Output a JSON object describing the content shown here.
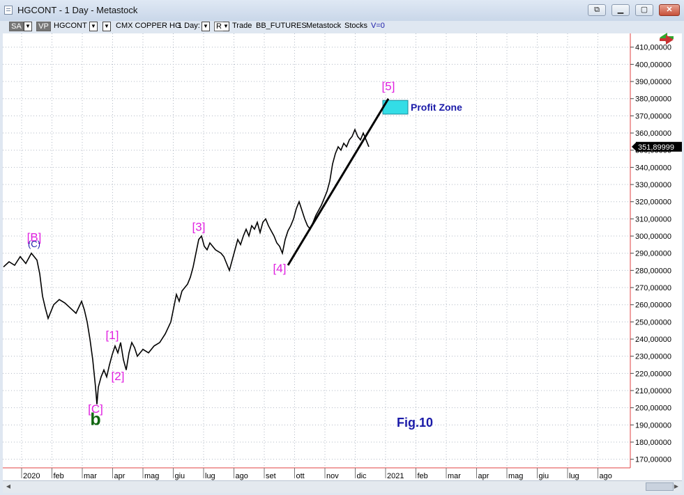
{
  "window": {
    "title": "HGCONT - 1 Day - Metastock"
  },
  "toolbar": {
    "sa": "SA",
    "vp": "VP",
    "symbol": "HGCONT",
    "security_name": "CMX COPPER HG",
    "period": "1 Day:",
    "r": "R",
    "trade": "Trade",
    "source": "BB_FUTURES",
    "provider": "Metastock",
    "stocks": "Stocks",
    "volume": "V=0"
  },
  "colors": {
    "wave_label": "#e020e0",
    "annotation_blue": "#1a1aa8",
    "wave_b_green": "#116611",
    "profit_zone": "#33dde6",
    "price_box": "#000000"
  },
  "chart_data": {
    "type": "line",
    "ylim": [
      165000,
      418000
    ],
    "y_ticks": [
      170000,
      180000,
      190000,
      200000,
      210000,
      220000,
      230000,
      240000,
      250000,
      260000,
      270000,
      280000,
      290000,
      300000,
      310000,
      320000,
      330000,
      340000,
      350000,
      360000,
      370000,
      380000,
      390000,
      400000,
      410000
    ],
    "y_tick_labels": [
      "170,00000",
      "180,00000",
      "190,00000",
      "200,00000",
      "210,00000",
      "220,00000",
      "230,00000",
      "240,00000",
      "250,00000",
      "260,00000",
      "270,00000",
      "280,00000",
      "290,00000",
      "300,00000",
      "310,00000",
      "320,00000",
      "330,00000",
      "340,00000",
      "350,00000",
      "360,00000",
      "370,00000",
      "380,00000",
      "390,00000",
      "400,00000",
      "410,00000"
    ],
    "x_months": [
      "2020",
      "feb",
      "mar",
      "apr",
      "mag",
      "giu",
      "lug",
      "ago",
      "set",
      "ott",
      "nov",
      "dic",
      "2021",
      "feb",
      "mar",
      "apr",
      "mag",
      "giu",
      "lug",
      "ago"
    ],
    "last_price": "351,89999",
    "series": [
      {
        "points": [
          [
            0,
            282000
          ],
          [
            2,
            285000
          ],
          [
            4,
            283000
          ],
          [
            6,
            288000
          ],
          [
            8,
            284000
          ],
          [
            10,
            290000
          ],
          [
            12,
            286000
          ],
          [
            13,
            278000
          ],
          [
            14,
            265000
          ],
          [
            15,
            258000
          ],
          [
            16,
            252000
          ],
          [
            17,
            256000
          ],
          [
            18,
            260000
          ],
          [
            20,
            263000
          ],
          [
            22,
            261000
          ],
          [
            24,
            258000
          ],
          [
            26,
            255000
          ],
          [
            28,
            262000
          ],
          [
            29,
            257000
          ],
          [
            30,
            250000
          ],
          [
            31,
            240000
          ],
          [
            32,
            228000
          ],
          [
            33,
            212000
          ],
          [
            33.5,
            202000
          ],
          [
            34,
            212000
          ],
          [
            35,
            218000
          ],
          [
            36,
            222000
          ],
          [
            37,
            218000
          ],
          [
            38,
            225000
          ],
          [
            39,
            231000
          ],
          [
            40,
            236000
          ],
          [
            41,
            232000
          ],
          [
            42,
            238000
          ],
          [
            43,
            228000
          ],
          [
            44,
            222000
          ],
          [
            45,
            232000
          ],
          [
            46,
            238000
          ],
          [
            47,
            235000
          ],
          [
            48,
            230000
          ],
          [
            50,
            234000
          ],
          [
            52,
            232000
          ],
          [
            54,
            236000
          ],
          [
            56,
            238000
          ],
          [
            58,
            243000
          ],
          [
            60,
            250000
          ],
          [
            61,
            258000
          ],
          [
            62,
            266000
          ],
          [
            63,
            262000
          ],
          [
            64,
            268000
          ],
          [
            66,
            272000
          ],
          [
            67,
            276000
          ],
          [
            68,
            282000
          ],
          [
            69,
            290000
          ],
          [
            70,
            298000
          ],
          [
            71,
            300000
          ],
          [
            72,
            294000
          ],
          [
            73,
            292000
          ],
          [
            74,
            296000
          ],
          [
            76,
            292000
          ],
          [
            78,
            290000
          ],
          [
            79,
            288000
          ],
          [
            80,
            284000
          ],
          [
            81,
            280000
          ],
          [
            82,
            286000
          ],
          [
            83,
            292000
          ],
          [
            84,
            298000
          ],
          [
            85,
            295000
          ],
          [
            86,
            300000
          ],
          [
            87,
            304000
          ],
          [
            88,
            300000
          ],
          [
            89,
            306000
          ],
          [
            90,
            304000
          ],
          [
            91,
            308000
          ],
          [
            92,
            302000
          ],
          [
            93,
            308000
          ],
          [
            94,
            310000
          ],
          [
            95,
            306000
          ],
          [
            96,
            303000
          ],
          [
            97,
            300000
          ],
          [
            98,
            296000
          ],
          [
            99,
            294000
          ],
          [
            100,
            290000
          ],
          [
            101,
            298000
          ],
          [
            102,
            303000
          ],
          [
            103,
            306000
          ],
          [
            104,
            310000
          ],
          [
            105,
            316000
          ],
          [
            106,
            320000
          ],
          [
            107,
            315000
          ],
          [
            108,
            310000
          ],
          [
            109,
            306000
          ],
          [
            110,
            304000
          ],
          [
            111,
            308000
          ],
          [
            112,
            312000
          ],
          [
            113,
            315000
          ],
          [
            114,
            318000
          ],
          [
            115,
            322000
          ],
          [
            116,
            326000
          ],
          [
            117,
            332000
          ],
          [
            118,
            342000
          ],
          [
            119,
            348000
          ],
          [
            120,
            352000
          ],
          [
            121,
            350000
          ],
          [
            122,
            354000
          ],
          [
            123,
            352000
          ],
          [
            124,
            356000
          ],
          [
            125,
            358000
          ],
          [
            126,
            362000
          ],
          [
            127,
            358000
          ],
          [
            128,
            356000
          ],
          [
            129,
            360000
          ],
          [
            130,
            356000
          ],
          [
            131,
            352000
          ]
        ]
      }
    ],
    "trendline": {
      "from": [
        102,
        283000
      ],
      "to": [
        138,
        380000
      ]
    },
    "annotations": [
      {
        "text": "[B]",
        "x": 11,
        "y": 297000
      },
      {
        "text": "(C)",
        "x": 11,
        "y": 293500
      },
      {
        "text": "[1]",
        "x": 39,
        "y": 240000
      },
      {
        "text": "[2]",
        "x": 41,
        "y": 216000
      },
      {
        "text": "[C]",
        "x": 33,
        "y": 197000
      },
      {
        "text": "b",
        "x": 33,
        "y": 190000
      },
      {
        "text": "[3]",
        "x": 70,
        "y": 303000
      },
      {
        "text": "[4]",
        "x": 99,
        "y": 279000
      },
      {
        "text": "[5]",
        "x": 138,
        "y": 385000
      },
      {
        "text": "Profit Zone",
        "x": 146,
        "y": 373000
      },
      {
        "text": "Fig.10",
        "x": 141,
        "y": 189000
      }
    ],
    "profit_zone": {
      "x_from": 136,
      "x_to": 145,
      "y_from": 371000,
      "y_to": 379000
    }
  }
}
